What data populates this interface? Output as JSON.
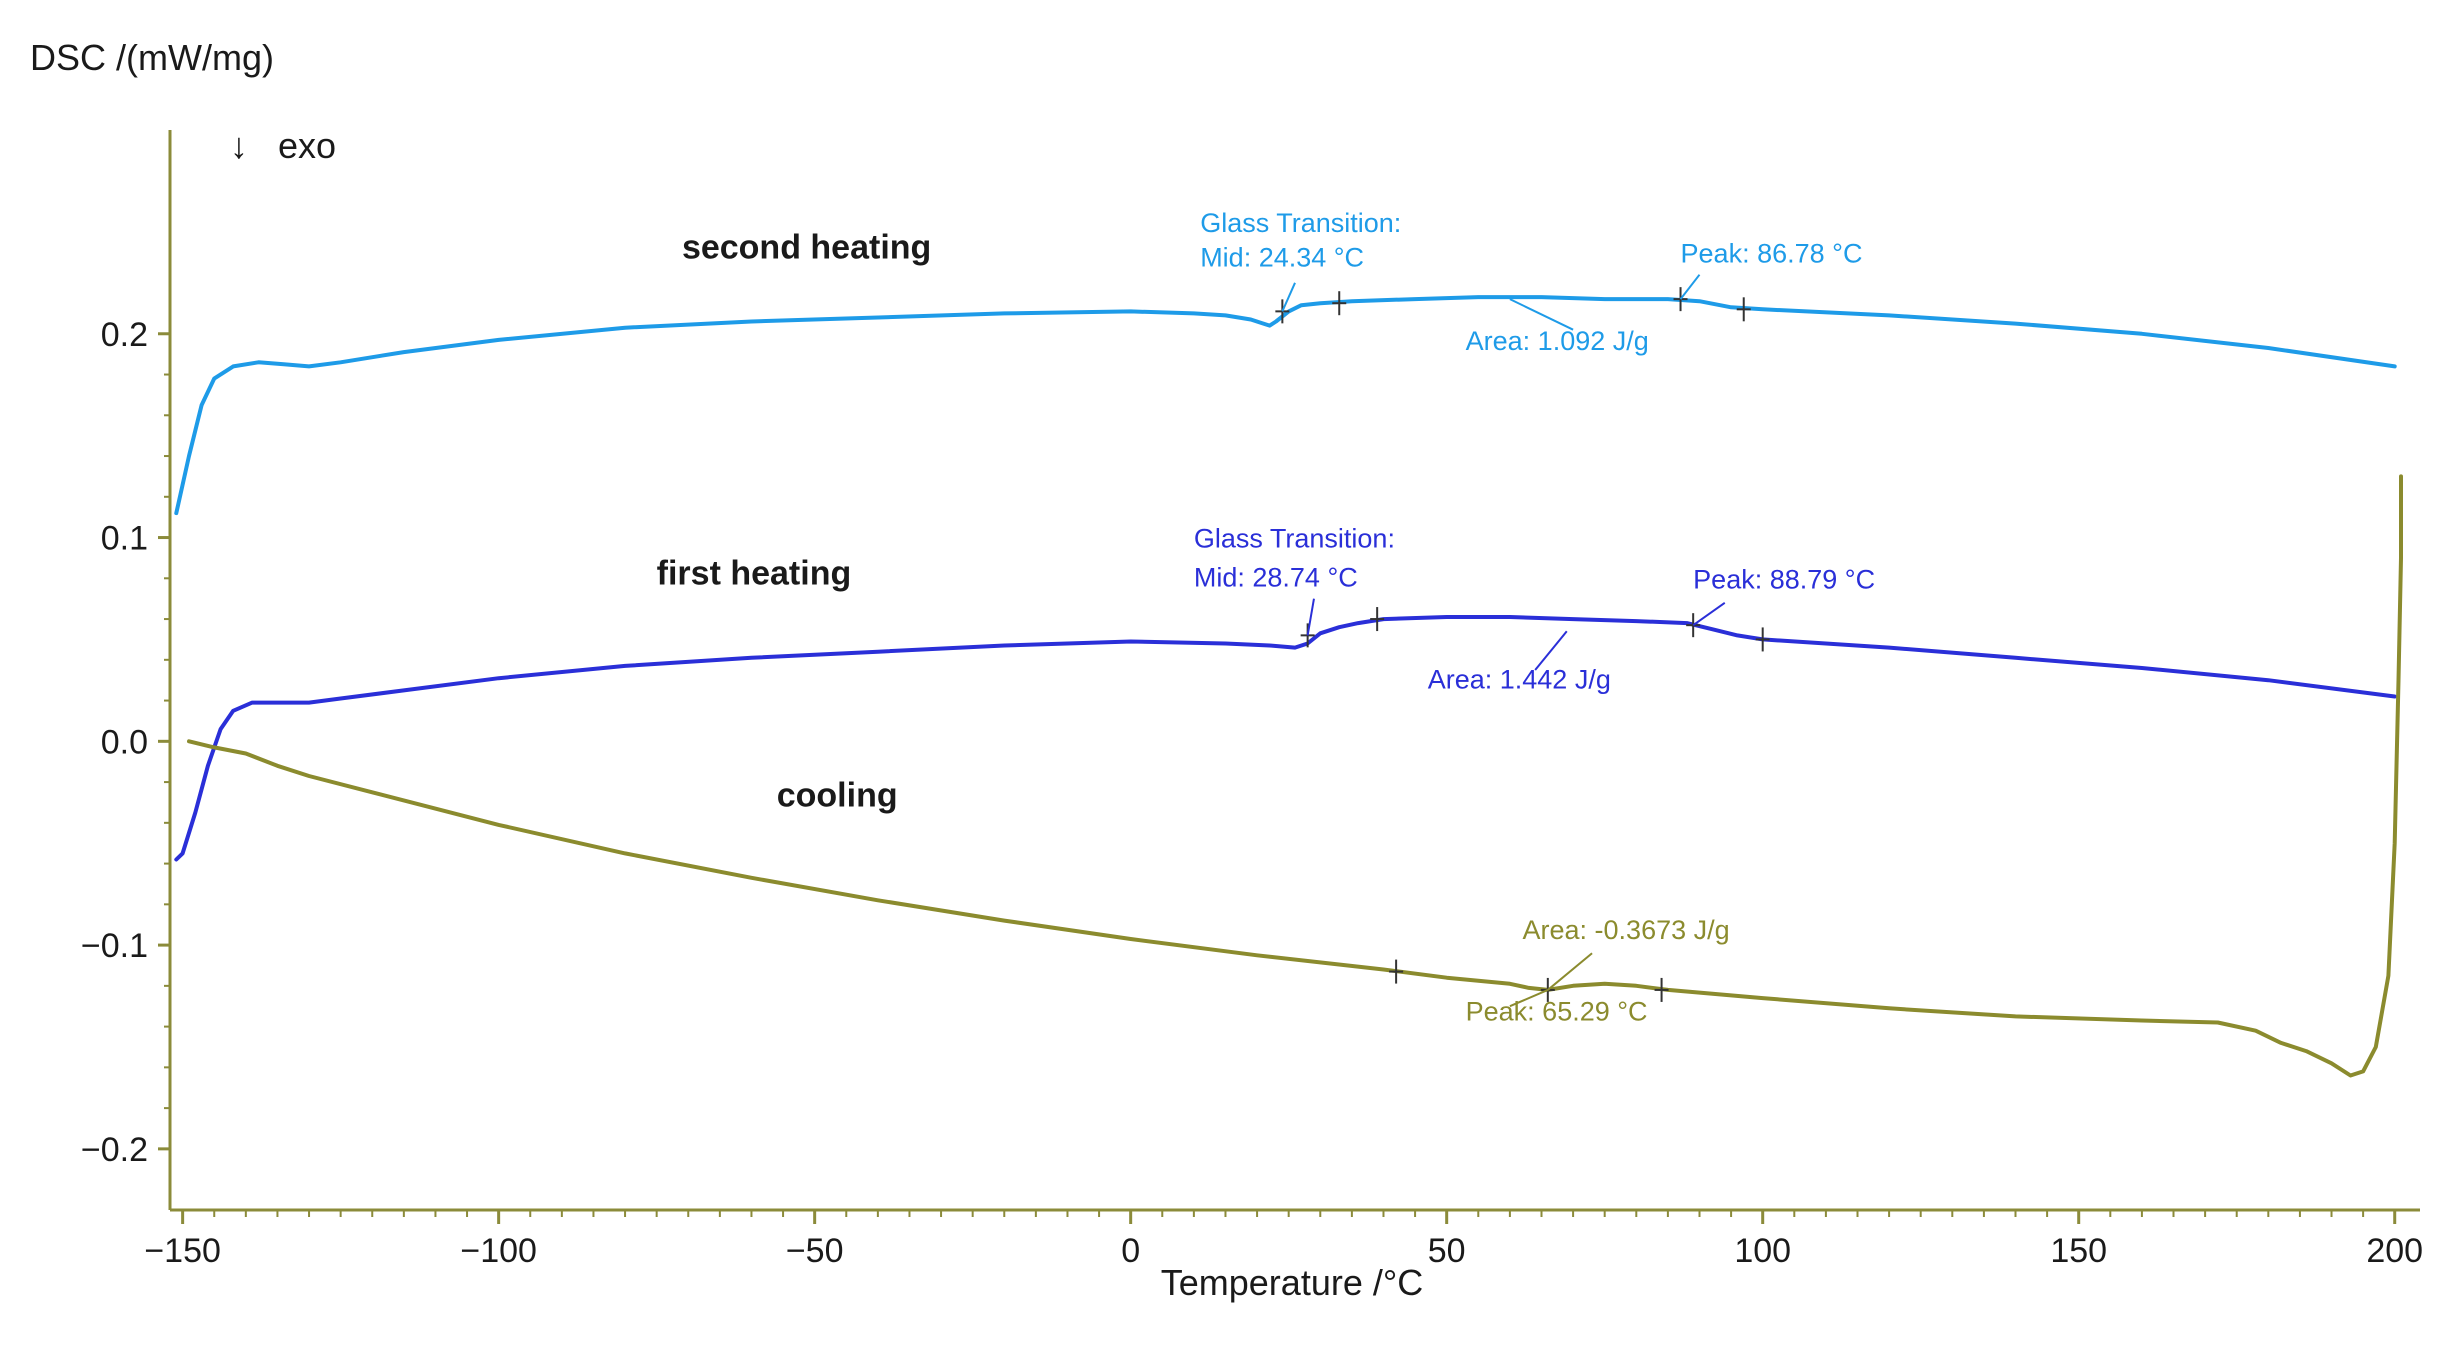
{
  "chart_data": {
    "type": "line",
    "title": "",
    "ylabel": "DSC /(mW/mg)",
    "xlabel": "Temperature /°C",
    "exo_label": "exo",
    "exo_arrow": "↓",
    "xlim": [
      -152,
      204
    ],
    "ylim": [
      -0.23,
      0.3
    ],
    "x_ticks": [
      -150,
      -100,
      -50,
      0,
      50,
      100,
      150,
      200
    ],
    "x_tick_labels": [
      "−150",
      "−100",
      "−50",
      "0",
      "50",
      "100",
      "150",
      "200"
    ],
    "y_ticks": [
      -0.2,
      -0.1,
      0.0,
      0.1,
      0.2
    ],
    "y_tick_labels": [
      "−0.2",
      "−0.1",
      "0.0",
      "0.1",
      "0.2"
    ],
    "grid": false,
    "axis_color": "#8b8b3a",
    "series": [
      {
        "name": "second heating",
        "color": "#1e9be8",
        "points": [
          [
            -151,
            0.112
          ],
          [
            -149,
            0.14
          ],
          [
            -147,
            0.165
          ],
          [
            -145,
            0.178
          ],
          [
            -142,
            0.184
          ],
          [
            -138,
            0.186
          ],
          [
            -134,
            0.185
          ],
          [
            -130,
            0.184
          ],
          [
            -125,
            0.186
          ],
          [
            -115,
            0.191
          ],
          [
            -100,
            0.197
          ],
          [
            -80,
            0.203
          ],
          [
            -60,
            0.206
          ],
          [
            -40,
            0.208
          ],
          [
            -20,
            0.21
          ],
          [
            0,
            0.211
          ],
          [
            10,
            0.21
          ],
          [
            15,
            0.209
          ],
          [
            19,
            0.207
          ],
          [
            21,
            0.205
          ],
          [
            22,
            0.204
          ],
          [
            23,
            0.206
          ],
          [
            25,
            0.211
          ],
          [
            27,
            0.214
          ],
          [
            30,
            0.215
          ],
          [
            35,
            0.216
          ],
          [
            45,
            0.217
          ],
          [
            55,
            0.218
          ],
          [
            65,
            0.218
          ],
          [
            75,
            0.217
          ],
          [
            85,
            0.217
          ],
          [
            90,
            0.216
          ],
          [
            95,
            0.213
          ],
          [
            100,
            0.212
          ],
          [
            120,
            0.209
          ],
          [
            140,
            0.205
          ],
          [
            160,
            0.2
          ],
          [
            180,
            0.193
          ],
          [
            200,
            0.184
          ]
        ],
        "label_xy": [
          -71,
          0.237
        ]
      },
      {
        "name": "first heating",
        "color": "#2a2fd8",
        "points": [
          [
            -151,
            -0.058
          ],
          [
            -150,
            -0.055
          ],
          [
            -148,
            -0.035
          ],
          [
            -146,
            -0.012
          ],
          [
            -144,
            0.006
          ],
          [
            -142,
            0.015
          ],
          [
            -139,
            0.019
          ],
          [
            -135,
            0.019
          ],
          [
            -130,
            0.019
          ],
          [
            -125,
            0.021
          ],
          [
            -115,
            0.025
          ],
          [
            -100,
            0.031
          ],
          [
            -80,
            0.037
          ],
          [
            -60,
            0.041
          ],
          [
            -40,
            0.044
          ],
          [
            -20,
            0.047
          ],
          [
            0,
            0.049
          ],
          [
            15,
            0.048
          ],
          [
            22,
            0.047
          ],
          [
            26,
            0.046
          ],
          [
            28,
            0.048
          ],
          [
            30,
            0.053
          ],
          [
            33,
            0.056
          ],
          [
            36,
            0.058
          ],
          [
            40,
            0.06
          ],
          [
            50,
            0.061
          ],
          [
            60,
            0.061
          ],
          [
            70,
            0.06
          ],
          [
            80,
            0.059
          ],
          [
            88,
            0.058
          ],
          [
            92,
            0.055
          ],
          [
            96,
            0.052
          ],
          [
            100,
            0.05
          ],
          [
            120,
            0.046
          ],
          [
            140,
            0.041
          ],
          [
            160,
            0.036
          ],
          [
            180,
            0.03
          ],
          [
            200,
            0.022
          ]
        ],
        "label_xy": [
          -75,
          0.077
        ]
      },
      {
        "name": "cooling",
        "color": "#8b8b2e",
        "points": [
          [
            -149,
            0.0
          ],
          [
            -145,
            -0.003
          ],
          [
            -140,
            -0.006
          ],
          [
            -135,
            -0.012
          ],
          [
            -130,
            -0.017
          ],
          [
            -120,
            -0.025
          ],
          [
            -100,
            -0.041
          ],
          [
            -80,
            -0.055
          ],
          [
            -60,
            -0.067
          ],
          [
            -40,
            -0.078
          ],
          [
            -20,
            -0.088
          ],
          [
            0,
            -0.097
          ],
          [
            20,
            -0.105
          ],
          [
            40,
            -0.112
          ],
          [
            50,
            -0.116
          ],
          [
            60,
            -0.119
          ],
          [
            63,
            -0.121
          ],
          [
            66,
            -0.122
          ],
          [
            70,
            -0.12
          ],
          [
            75,
            -0.119
          ],
          [
            80,
            -0.12
          ],
          [
            85,
            -0.122
          ],
          [
            100,
            -0.126
          ],
          [
            120,
            -0.131
          ],
          [
            140,
            -0.135
          ],
          [
            160,
            -0.137
          ],
          [
            172,
            -0.138
          ],
          [
            178,
            -0.142
          ],
          [
            182,
            -0.148
          ],
          [
            186,
            -0.152
          ],
          [
            190,
            -0.158
          ],
          [
            193,
            -0.164
          ],
          [
            195,
            -0.162
          ],
          [
            197,
            -0.15
          ],
          [
            199,
            -0.115
          ],
          [
            200,
            -0.05
          ],
          [
            200.6,
            0.03
          ],
          [
            201,
            0.09
          ],
          [
            201,
            0.13
          ]
        ],
        "label_xy": [
          -56,
          -0.032
        ]
      }
    ],
    "tick_marks": [
      {
        "series": 0,
        "points": [
          [
            24,
            0.211
          ],
          [
            33,
            0.215
          ],
          [
            87,
            0.217
          ],
          [
            97,
            0.212
          ]
        ]
      },
      {
        "series": 1,
        "points": [
          [
            28,
            0.052
          ],
          [
            39,
            0.06
          ],
          [
            89,
            0.057
          ],
          [
            100,
            0.05
          ]
        ]
      },
      {
        "series": 2,
        "points": [
          [
            42,
            -0.113
          ],
          [
            66,
            -0.122
          ],
          [
            84,
            -0.122
          ]
        ]
      }
    ],
    "annotations": [
      {
        "text": "Glass Transition:",
        "xy": [
          11,
          0.25
        ],
        "color": "#1e9be8"
      },
      {
        "text": "Mid: 24.34 °C",
        "xy": [
          11,
          0.233
        ],
        "color": "#1e9be8"
      },
      {
        "text": "Peak: 86.78 °C",
        "xy": [
          87,
          0.235
        ],
        "color": "#1e9be8"
      },
      {
        "text": "Area: 1.092 J/g",
        "xy": [
          53,
          0.192
        ],
        "color": "#1e9be8"
      },
      {
        "text": "Glass Transition:",
        "xy": [
          10,
          0.095
        ],
        "color": "#2a2fd8"
      },
      {
        "text": "Mid: 28.74 °C",
        "xy": [
          10,
          0.076
        ],
        "color": "#2a2fd8"
      },
      {
        "text": "Peak: 88.79 °C",
        "xy": [
          89,
          0.075
        ],
        "color": "#2a2fd8"
      },
      {
        "text": "Area: 1.442 J/g",
        "xy": [
          47,
          0.026
        ],
        "color": "#2a2fd8"
      },
      {
        "text": "Area: -0.3673 J/g",
        "xy": [
          62,
          -0.097
        ],
        "color": "#8b8b2e"
      },
      {
        "text": "Peak: 65.29 °C",
        "xy": [
          53,
          -0.137
        ],
        "color": "#8b8b2e"
      }
    ],
    "leader_lines": [
      {
        "from": [
          24,
          0.211
        ],
        "to": [
          26,
          0.225
        ],
        "color": "#1e9be8"
      },
      {
        "from": [
          87,
          0.217
        ],
        "to": [
          90,
          0.229
        ],
        "color": "#1e9be8"
      },
      {
        "from": [
          70,
          0.202
        ],
        "to": [
          60,
          0.217
        ],
        "color": "#1e9be8"
      },
      {
        "from": [
          28,
          0.052
        ],
        "to": [
          29,
          0.07
        ],
        "color": "#2a2fd8"
      },
      {
        "from": [
          89,
          0.057
        ],
        "to": [
          94,
          0.068
        ],
        "color": "#2a2fd8"
      },
      {
        "from": [
          64,
          0.035
        ],
        "to": [
          69,
          0.054
        ],
        "color": "#2a2fd8"
      },
      {
        "from": [
          66,
          -0.122
        ],
        "to": [
          73,
          -0.104
        ],
        "color": "#8b8b2e"
      },
      {
        "from": [
          66,
          -0.122
        ],
        "to": [
          60,
          -0.13
        ],
        "color": "#8b8b2e"
      }
    ]
  }
}
